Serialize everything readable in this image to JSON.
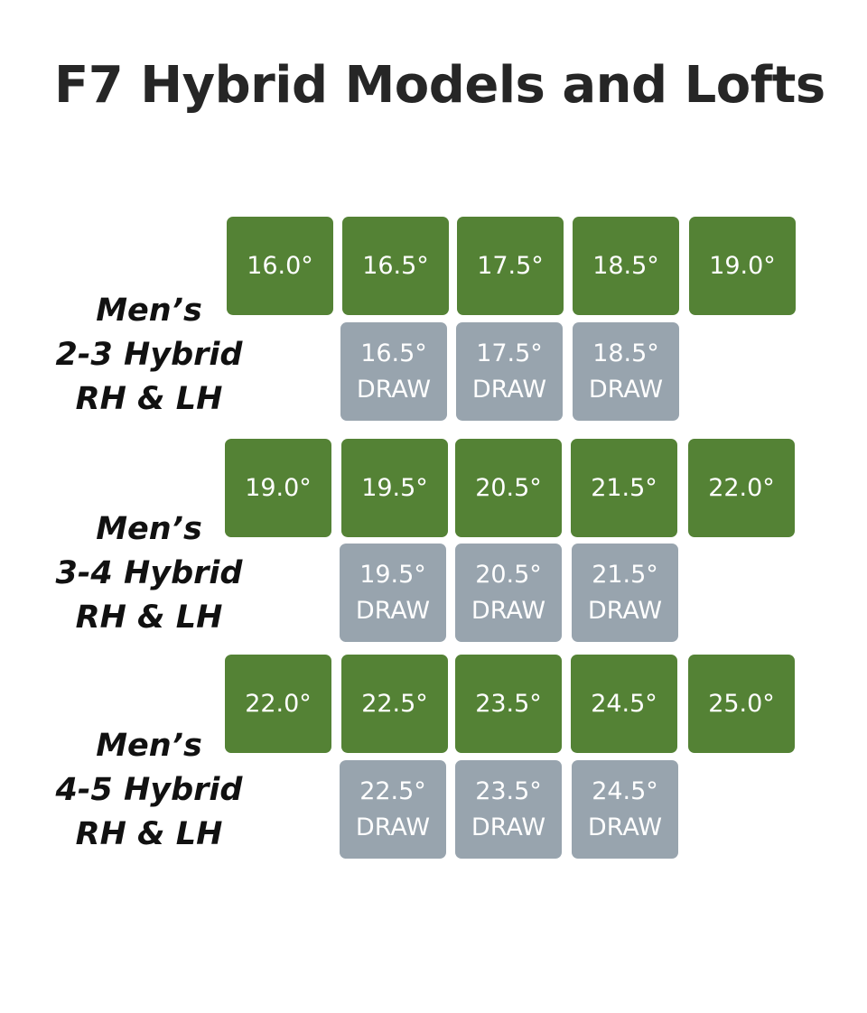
{
  "title": "F7 Hybrid Models and Lofts",
  "colors": {
    "standard_tile": "#548235",
    "draw_tile": "#98a4ae",
    "title_text": "#262626"
  },
  "groups": [
    {
      "label_lines": [
        "Men’s",
        "2-3 Hybrid",
        "RH & LH"
      ],
      "standard_lofts": [
        "16.0°",
        "16.5°",
        "17.5°",
        "18.5°",
        "19.0°"
      ],
      "draw_lofts": [
        "16.5°",
        "17.5°",
        "18.5°"
      ],
      "draw_label": "DRAW"
    },
    {
      "label_lines": [
        "Men’s",
        "3-4 Hybrid",
        "RH & LH"
      ],
      "standard_lofts": [
        "19.0°",
        "19.5°",
        "20.5°",
        "21.5°",
        "22.0°"
      ],
      "draw_lofts": [
        "19.5°",
        "20.5°",
        "21.5°"
      ],
      "draw_label": "DRAW"
    },
    {
      "label_lines": [
        "Men’s",
        "4-5 Hybrid",
        "RH & LH"
      ],
      "standard_lofts": [
        "22.0°",
        "22.5°",
        "23.5°",
        "24.5°",
        "25.0°"
      ],
      "draw_lofts": [
        "22.5°",
        "23.5°",
        "24.5°"
      ],
      "draw_label": "DRAW"
    }
  ]
}
